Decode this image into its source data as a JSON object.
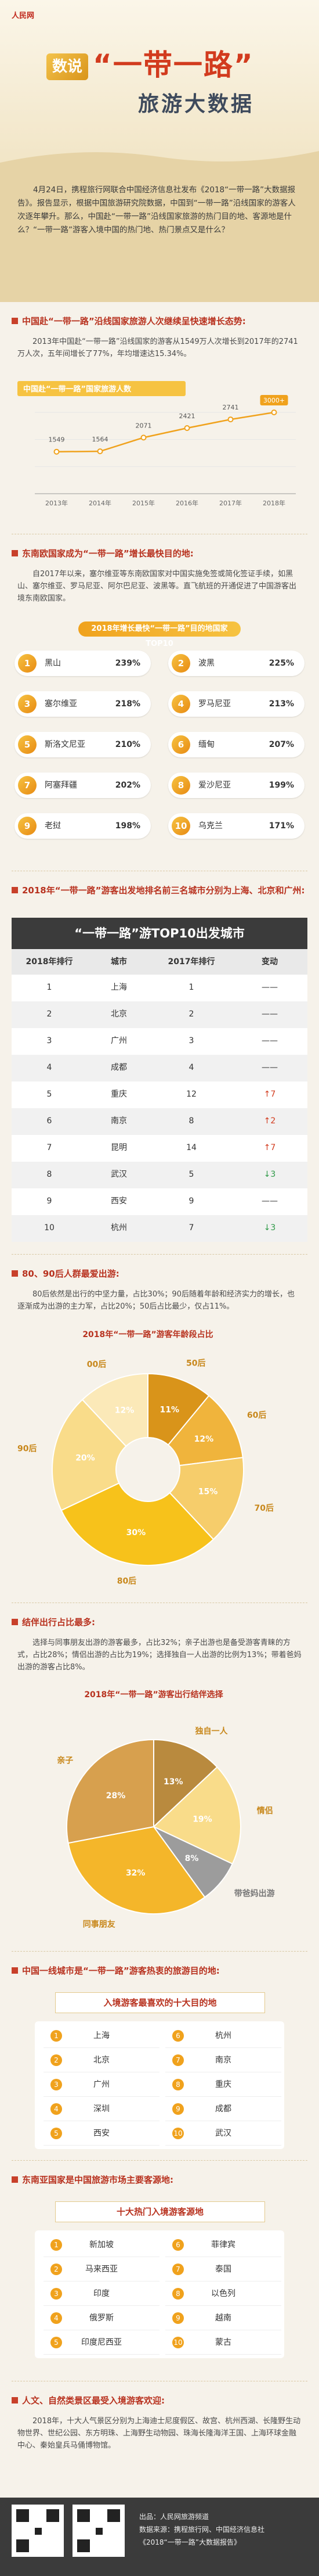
{
  "header": {
    "logo": "人民网",
    "badge": "数说",
    "title": "“一带一路”",
    "subtitle": "旅游大数据"
  },
  "intro": "4月24日，携程旅行网联合中国经济信息社发布《2018“一带一路”大数据报告》。报告显示，根据中国旅游研究院数据，中国到“一带一路”沿线国家的游客人次逐年攀升。那么，中国赴“一带一路”沿线国家旅游的热门目的地、客源地是什么？“一带一路”游客入境中国的热门地、热门景点又是什么？",
  "sections": [
    {
      "heading": "中国赴“一带一路”沿线国家旅游人次继续呈快速增长态势:",
      "text": "2013年中国赴“一带一路”沿线国家的游客从1549万人次增长到2017年的2741万人次，五年间增长了77%，年均增速达15.34%。"
    },
    {
      "heading": "东南欧国家成为“一带一路”增长最快目的地:",
      "text": "自2017年以来，塞尔维亚等东南欧国家对中国实施免签或简化签证手续，如黑山、塞尔维亚、罗马尼亚、阿尔巴尼亚、波黑等。直飞航班的开通促进了中国游客出境东南欧国家。",
      "ranking": {
        "title": "2018年增长最快“一带一路”目的地国家TOP10",
        "items": [
          {
            "rank": 1,
            "name": "黑山",
            "growth": "239%"
          },
          {
            "rank": 2,
            "name": "波黑",
            "growth": "225%"
          },
          {
            "rank": 3,
            "name": "塞尔维亚",
            "growth": "218%"
          },
          {
            "rank": 4,
            "name": "罗马尼亚",
            "growth": "213%"
          },
          {
            "rank": 5,
            "name": "斯洛文尼亚",
            "growth": "210%"
          },
          {
            "rank": 6,
            "name": "缅甸",
            "growth": "207%"
          },
          {
            "rank": 7,
            "name": "阿塞拜疆",
            "growth": "202%"
          },
          {
            "rank": 8,
            "name": "爱沙尼亚",
            "growth": "199%"
          },
          {
            "rank": 9,
            "name": "老挝",
            "growth": "198%"
          },
          {
            "rank": 10,
            "name": "乌克兰",
            "growth": "171%"
          }
        ]
      }
    },
    {
      "heading": "2018年“一带一路”游客出发地排名前三名城市分别为上海、北京和广州:",
      "table": {
        "title": "“一带一路”游TOP10出发城市",
        "columns": [
          "2018年排行",
          "城市",
          "2017年排行",
          "变动"
        ],
        "rows": [
          [
            1,
            "上海",
            1,
            "——"
          ],
          [
            2,
            "北京",
            2,
            "——"
          ],
          [
            3,
            "广州",
            3,
            "——"
          ],
          [
            4,
            "成都",
            4,
            "——"
          ],
          [
            5,
            "重庆",
            12,
            "↑7"
          ],
          [
            6,
            "南京",
            8,
            "↑2"
          ],
          [
            7,
            "昆明",
            14,
            "↑7"
          ],
          [
            8,
            "武汉",
            5,
            "↓3"
          ],
          [
            9,
            "西安",
            9,
            "——"
          ],
          [
            10,
            "杭州",
            7,
            "↓3"
          ]
        ]
      }
    },
    {
      "heading": "80、90后人群最爱出游:",
      "text": "80后依然是出行的中坚力量，占比30%；90后随着年龄和经济实力的增长，也逐渐成为出游的主力军，占比20%；50后占比最少，仅占11%。"
    },
    {
      "heading": "结伴出行占比最多:",
      "text": "选择与同事朋友出游的游客最多，占比32%；亲子出游也是备受游客青睐的方式，占比28%；情侣出游的占比为19%；选择独自一人出游的比例为13%；带着爸妈出游的游客占比8%。"
    },
    {
      "heading": "中国一线城市是“一带一路”游客热衷的旅游目的地:",
      "list": {
        "title": "入境游客最喜欢的十大目的地",
        "items": [
          {
            "rank": 1,
            "name": "上海"
          },
          {
            "rank": 2,
            "name": "北京"
          },
          {
            "rank": 3,
            "name": "广州"
          },
          {
            "rank": 4,
            "name": "深圳"
          },
          {
            "rank": 5,
            "name": "西安"
          },
          {
            "rank": 6,
            "name": "杭州"
          },
          {
            "rank": 7,
            "name": "南京"
          },
          {
            "rank": 8,
            "name": "重庆"
          },
          {
            "rank": 9,
            "name": "成都"
          },
          {
            "rank": 10,
            "name": "武汉"
          }
        ]
      }
    },
    {
      "heading": "东南亚国家是中国旅游市场主要客源地:",
      "list": {
        "title": "十大热门入境游客源地",
        "items": [
          {
            "rank": 1,
            "name": "新加坡"
          },
          {
            "rank": 2,
            "name": "马来西亚"
          },
          {
            "rank": 3,
            "name": "印度"
          },
          {
            "rank": 4,
            "name": "俄罗斯"
          },
          {
            "rank": 5,
            "name": "印度尼西亚"
          },
          {
            "rank": 6,
            "name": "菲律宾"
          },
          {
            "rank": 7,
            "name": "泰国"
          },
          {
            "rank": 8,
            "name": "以色列"
          },
          {
            "rank": 9,
            "name": "越南"
          },
          {
            "rank": 10,
            "name": "蒙古"
          }
        ]
      }
    },
    {
      "heading": "人文、自然类景区最受入境游客欢迎:",
      "text": "2018年，十大人气景区分别为上海迪士尼度假区、故宫、杭州西湖、长隆野生动物世界、世纪公园、东方明珠、上海野生动物园、珠海长隆海洋王国、上海环球金融中心、秦始皇兵马俑博物馆。"
    }
  ],
  "footer": {
    "credits": [
      "出品：人民网旅游频道",
      "数据来源：携程旅行网、中国经济信息社",
      "《2018“一带一路”大数据报告》"
    ]
  },
  "chart_data": [
    {
      "type": "line",
      "title": "中国赴“一带一路”国家旅游人数",
      "categories": [
        "2013年",
        "2014年",
        "2015年",
        "2016年",
        "2017年",
        "2018年"
      ],
      "values": [
        1549,
        1564,
        2071,
        2421,
        2741,
        3000
      ],
      "value_labels": [
        "1549",
        "1564",
        "2071",
        "2421",
        "2741",
        "3000+"
      ],
      "color": "#f0a21d"
    },
    {
      "type": "donut",
      "title": "2018年“一带一路”游客年龄段占比",
      "categories": [
        "50后",
        "60后",
        "70后",
        "80后",
        "90后",
        "00后"
      ],
      "values": [
        11,
        12,
        15,
        30,
        20,
        12
      ],
      "value_labels": [
        "11%",
        "12%",
        "15%",
        "30%",
        "20%",
        "12%"
      ],
      "colors": [
        "#d9941a",
        "#f0b43c",
        "#f6cd6b",
        "#f7c21b",
        "#f9dc8a",
        "#fbe9b8"
      ]
    },
    {
      "type": "pie",
      "title": "2018年“一带一路”游客出行结伴选择",
      "categories": [
        "独自一人",
        "情侣",
        "带爸妈出游",
        "同事朋友",
        "亲子"
      ],
      "values": [
        13,
        19,
        8,
        32,
        28
      ],
      "value_labels": [
        "13%",
        "19%",
        "8%",
        "32%",
        "28%"
      ],
      "colors": [
        "#b98a3e",
        "#f9dc8a",
        "#9c9c9c",
        "#f4b62a",
        "#d7a04e"
      ]
    }
  ]
}
